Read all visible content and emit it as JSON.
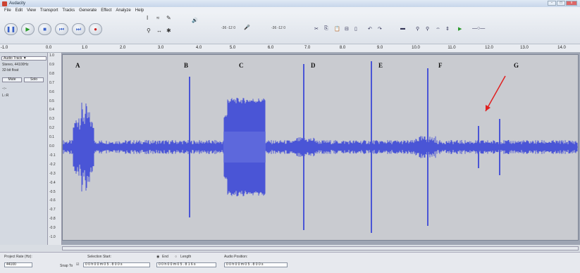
{
  "window": {
    "title": "Audacity",
    "buttons": [
      "-",
      "□",
      "x"
    ]
  },
  "menu": [
    "File",
    "Edit",
    "View",
    "Transport",
    "Tracks",
    "Generate",
    "Effect",
    "Analyze",
    "Help"
  ],
  "transport": [
    {
      "name": "pause-button",
      "glyph": "❚❚",
      "color": "#3860c8"
    },
    {
      "name": "play-button",
      "glyph": "▶",
      "color": "#2a9a2a"
    },
    {
      "name": "stop-button",
      "glyph": "■",
      "color": "#3860c8"
    },
    {
      "name": "skip-start-button",
      "glyph": "⏮",
      "color": "#3860c8"
    },
    {
      "name": "skip-end-button",
      "glyph": "⏭",
      "color": "#3860c8"
    },
    {
      "name": "record-button",
      "glyph": "●",
      "color": "#cc2222"
    }
  ],
  "meters": {
    "output_left": "-36 -12 0",
    "output_right": "-36 -12 0"
  },
  "ruler": [
    "-1.0",
    "0.0",
    "1.0",
    "2.0",
    "3.0",
    "4.0",
    "5.0",
    "6.0",
    "7.0",
    "8.0",
    "9.0",
    "10.0",
    "11.0",
    "12.0",
    "13.0",
    "14.0"
  ],
  "track": {
    "name": "Audio Track ▼",
    "info1": "Stereo, 44100Hz",
    "info2": "32-bit float",
    "mute": "Mute",
    "solo": "Solo"
  },
  "vscale": [
    "1.0",
    "0.9",
    "0.8",
    "0.7",
    "0.6",
    "0.5",
    "0.4",
    "0.3",
    "0.2",
    "0.1",
    "0.0",
    "-0.1",
    "-0.2",
    "-0.3",
    "-0.4",
    "-0.5",
    "-0.6",
    "-0.7",
    "-0.8",
    "-0.9",
    "-1.0"
  ],
  "markers": [
    "A",
    "B",
    "C",
    "D",
    "E",
    "F",
    "G"
  ],
  "waveform_color": "#4a55d6",
  "bottom": {
    "project_rate_label": "Project Rate (Hz):",
    "project_rate_value": "44100",
    "snap_label": "Snap To",
    "selection_start_label": "Selection Start:",
    "selection_start_value": "0 0 h 0 0 m 0 5 . 8 0 0 s",
    "end_label": "End",
    "length_label": "Length",
    "end_value": "0 0 h 0 0 m 0 5 . 8 1 6 s",
    "audio_position_label": "Audio Position:",
    "audio_position_value": "0 0 h 0 0 m 0 5 . 8 0 0 s"
  }
}
